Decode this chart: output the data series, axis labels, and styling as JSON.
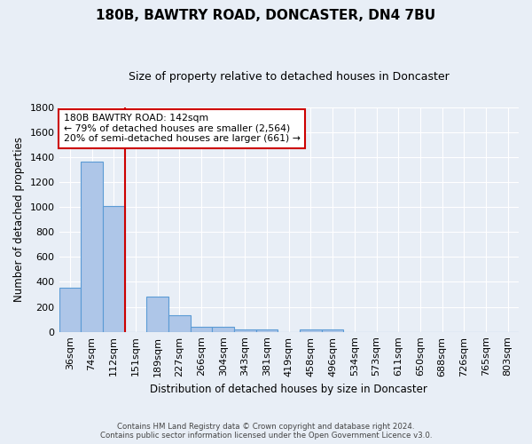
{
  "title": "180B, BAWTRY ROAD, DONCASTER, DN4 7BU",
  "subtitle": "Size of property relative to detached houses in Doncaster",
  "xlabel": "Distribution of detached houses by size in Doncaster",
  "ylabel": "Number of detached properties",
  "footer_line1": "Contains HM Land Registry data © Crown copyright and database right 2024.",
  "footer_line2": "Contains public sector information licensed under the Open Government Licence v3.0.",
  "bar_labels": [
    "36sqm",
    "74sqm",
    "112sqm",
    "151sqm",
    "189sqm",
    "227sqm",
    "266sqm",
    "304sqm",
    "343sqm",
    "381sqm",
    "419sqm",
    "458sqm",
    "496sqm",
    "534sqm",
    "573sqm",
    "611sqm",
    "650sqm",
    "688sqm",
    "726sqm",
    "765sqm",
    "803sqm"
  ],
  "bar_values": [
    350,
    1360,
    1010,
    0,
    285,
    130,
    42,
    42,
    22,
    18,
    0,
    18,
    22,
    0,
    0,
    0,
    0,
    0,
    0,
    0,
    0
  ],
  "bar_color": "#aec6e8",
  "bar_edge_color": "#5b9bd5",
  "background_color": "#e8eef6",
  "grid_color": "#ffffff",
  "vline_color": "#cc0000",
  "vline_x_index": 3,
  "annotation_text": "180B BAWTRY ROAD: 142sqm\n← 79% of detached houses are smaller (2,564)\n20% of semi-detached houses are larger (661) →",
  "annotation_box_color": "#ffffff",
  "annotation_box_edge_color": "#cc0000",
  "ylim": [
    0,
    1800
  ],
  "yticks": [
    0,
    200,
    400,
    600,
    800,
    1000,
    1200,
    1400,
    1600,
    1800
  ]
}
